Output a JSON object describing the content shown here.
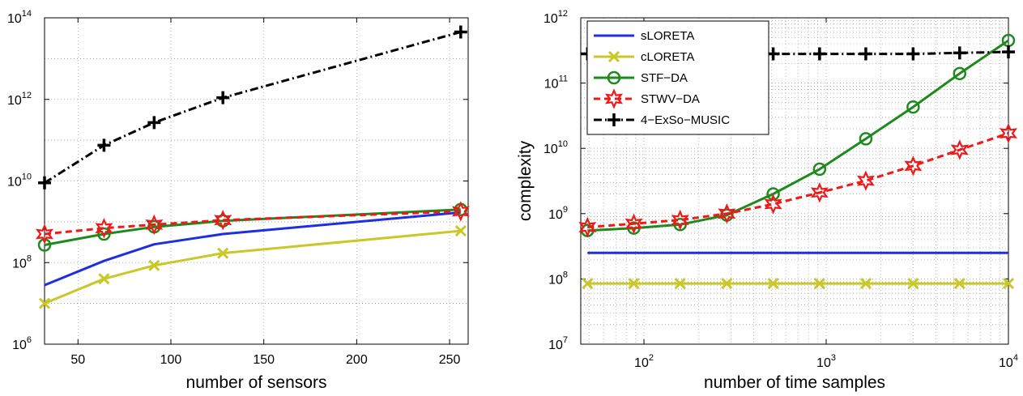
{
  "chart_data": [
    {
      "type": "line",
      "xlabel": "number of sensors",
      "ylabel": "",
      "xscale": "linear",
      "yscale": "log",
      "xlim": [
        32,
        260
      ],
      "ylim": [
        1000000.0,
        100000000000000.0
      ],
      "grid": true,
      "x_ticks": [
        50,
        100,
        150,
        200,
        250
      ],
      "x_tick_labels": [
        "50",
        "100",
        "150",
        "200",
        "250"
      ],
      "y_ticks": [
        1000000.0,
        100000000.0,
        10000000000.0,
        1000000000000.0,
        100000000000000.0
      ],
      "y_tick_labels": [
        {
          "base": "10",
          "exp": "6"
        },
        {
          "base": "10",
          "exp": "8"
        },
        {
          "base": "10",
          "exp": "10"
        },
        {
          "base": "10",
          "exp": "12"
        },
        {
          "base": "10",
          "exp": "14"
        }
      ],
      "x": [
        32,
        64,
        91,
        128,
        256
      ],
      "series": [
        {
          "key": "sloreta",
          "values": [
            28000000.0,
            110000000.0,
            280000000.0,
            500000000.0,
            1700000000.0
          ],
          "color": "#1f2fe0",
          "dash": "",
          "marker": "none"
        },
        {
          "key": "cloreta",
          "values": [
            10000000.0,
            40000000.0,
            85000000.0,
            170000000.0,
            600000000.0
          ],
          "color": "#c8c828",
          "dash": "",
          "marker": "x"
        },
        {
          "key": "stfda",
          "values": [
            270000000.0,
            500000000.0,
            750000000.0,
            1050000000.0,
            2000000000.0
          ],
          "color": "#1e8a1e",
          "dash": "",
          "marker": "circle"
        },
        {
          "key": "stwvda",
          "values": [
            500000000.0,
            700000000.0,
            850000000.0,
            1100000000.0,
            1800000000.0
          ],
          "color": "#f01818",
          "dash": "8,5",
          "marker": "star"
        },
        {
          "key": "exso",
          "values": [
            9000000000.0,
            75000000000.0,
            270000000000.0,
            1100000000000.0,
            45000000000000.0
          ],
          "color": "#000000",
          "dash": "10,4,2,4",
          "marker": "plus"
        }
      ]
    },
    {
      "type": "line",
      "xlabel": "number of time samples",
      "ylabel": "complexity",
      "xscale": "log",
      "yscale": "log",
      "xlim": [
        45,
        10000
      ],
      "ylim": [
        10000000.0,
        1000000000000.0
      ],
      "grid": true,
      "legend_position": "top-left",
      "x_ticks": [
        100,
        1000,
        10000
      ],
      "x_tick_labels": [
        {
          "base": "10",
          "exp": "2"
        },
        {
          "base": "10",
          "exp": "3"
        },
        {
          "base": "10",
          "exp": "4"
        }
      ],
      "y_ticks": [
        10000000.0,
        100000000.0,
        1000000000.0,
        10000000000.0,
        100000000000.0,
        1000000000000.0
      ],
      "y_tick_labels": [
        {
          "base": "10",
          "exp": "7"
        },
        {
          "base": "10",
          "exp": "8"
        },
        {
          "base": "10",
          "exp": "9"
        },
        {
          "base": "10",
          "exp": "10"
        },
        {
          "base": "10",
          "exp": "11"
        },
        {
          "base": "10",
          "exp": "12"
        }
      ],
      "x": [
        49,
        88,
        158,
        285,
        512,
        920,
        1650,
        3000,
        5400,
        10000
      ],
      "series": [
        {
          "key": "sloreta",
          "name": "sLORETA",
          "values": [
            250000000.0,
            250000000.0,
            250000000.0,
            250000000.0,
            250000000.0,
            250000000.0,
            250000000.0,
            250000000.0,
            250000000.0,
            250000000.0
          ],
          "color": "#1f2fe0",
          "dash": "",
          "marker": "none"
        },
        {
          "key": "cloreta",
          "name": "cLORETA",
          "values": [
            85000000.0,
            85000000.0,
            85000000.0,
            85000000.0,
            85000000.0,
            85000000.0,
            85000000.0,
            85000000.0,
            85000000.0,
            85000000.0
          ],
          "color": "#c8c828",
          "dash": "",
          "marker": "x"
        },
        {
          "key": "stfda",
          "name": "STF−DA",
          "values": [
            550000000.0,
            600000000.0,
            680000000.0,
            950000000.0,
            2000000000.0,
            4800000000.0,
            14000000000.0,
            43000000000.0,
            140000000000.0,
            450000000000.0
          ],
          "color": "#1e8a1e",
          "dash": "",
          "marker": "circle"
        },
        {
          "key": "stwvda",
          "name": "STWV−DA",
          "values": [
            620000000.0,
            700000000.0,
            800000000.0,
            1000000000.0,
            1400000000.0,
            2100000000.0,
            3200000000.0,
            5400000000.0,
            9500000000.0,
            17000000000.0
          ],
          "color": "#f01818",
          "dash": "8,5",
          "marker": "star"
        },
        {
          "key": "exso",
          "name": "4−ExSo−MUSIC",
          "values": [
            280000000000.0,
            280000000000.0,
            280000000000.0,
            280000000000.0,
            280000000000.0,
            280000000000.0,
            280000000000.0,
            280000000000.0,
            290000000000.0,
            300000000000.0
          ],
          "color": "#000000",
          "dash": "10,4,2,4",
          "marker": "plus"
        }
      ]
    }
  ]
}
